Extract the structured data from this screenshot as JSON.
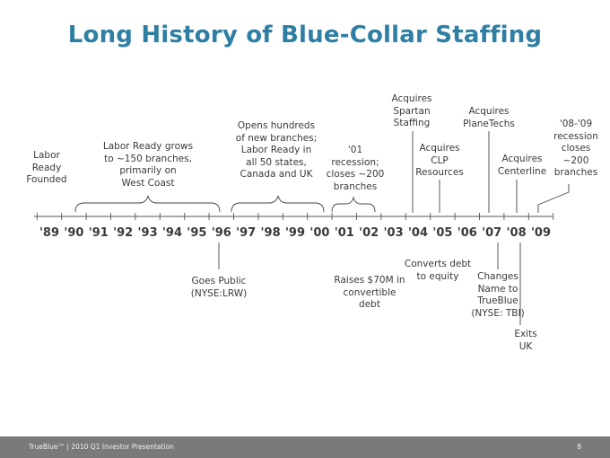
{
  "title": "Long History of Blue-Collar Staffing",
  "years": [
    "'89",
    "'90",
    "'91",
    "'92",
    "'93",
    "'94",
    "'95",
    "'96",
    "'97",
    "'98",
    "'99",
    "'00",
    "'01",
    "'02",
    "'03",
    "'04",
    "'05",
    "'06",
    "'07",
    "'08",
    "'09"
  ],
  "above": {
    "labor_ready_founded": "Labor\nReady\nFounded",
    "grows_150": "Labor Ready grows\nto ~150 branches,\nprimarily on\nWest Coast",
    "opens_hundreds": "Opens hundreds\nof new branches;\nLabor Ready in\nall 50 states,\nCanada and UK",
    "recession_01": "'01\nrecession;\ncloses ~200\nbranches",
    "acquires_spartan": "Acquires\nSpartan\nStaffing",
    "acquires_clp": "Acquires\nCLP\nResources",
    "acquires_planetechs": "Acquires\nPlaneTechs",
    "acquires_centerline": "Acquires\nCenterline",
    "recession_08_09": "'08-'09\nrecession\ncloses ~200\nbranches"
  },
  "below": {
    "goes_public": "Goes Public\n(NYSE:LRW)",
    "raises_70m": "Raises $70M in\nconvertible\ndebt",
    "converts_debt": "Converts debt\nto equity",
    "changes_name": "Changes\nName to\nTrueBlue\n(NYSE: TBI)",
    "exits_uk": "Exits\nUK"
  },
  "footer": {
    "left": "TrueBlue™ | 2010 Q1 Investor Presentation",
    "page": "8"
  },
  "colors": {
    "title": "#2e7fa3",
    "footer_bar": "#7a7a7a"
  }
}
